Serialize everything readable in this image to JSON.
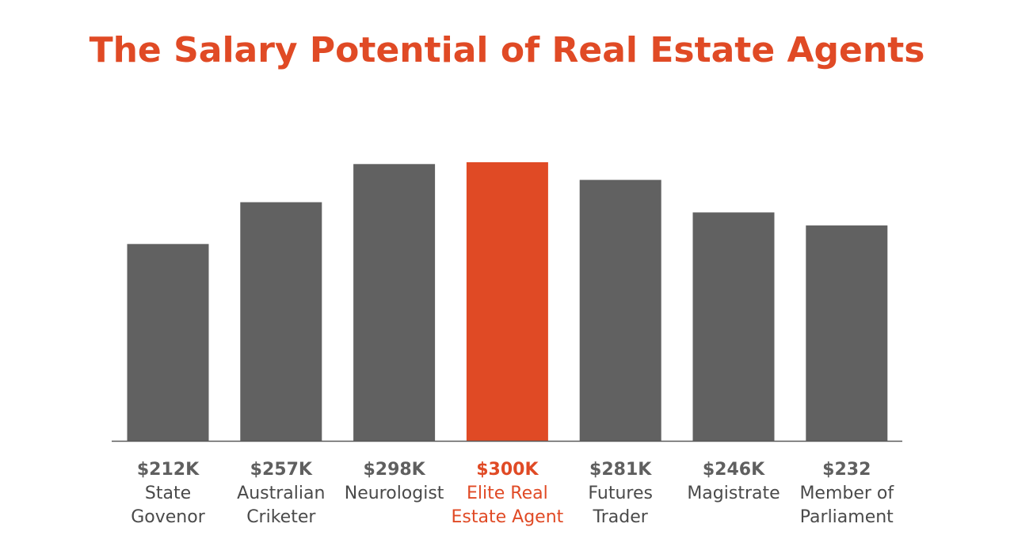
{
  "title": "The Salary Potential of Real Estate Agents",
  "colors": {
    "accent": "#e04a25",
    "bar": "#616161",
    "value_text": "#5f5f5f",
    "label_text": "#4a4a4a",
    "axis": "#5a5a5a"
  },
  "chart_data": {
    "type": "bar",
    "title": "The Salary Potential of Real Estate Agents",
    "xlabel": "",
    "ylabel": "",
    "grid": false,
    "ylim": [
      0,
      300
    ],
    "highlight_index": 3,
    "categories": [
      [
        "State",
        "Govenor"
      ],
      [
        "Australian",
        "Criketer"
      ],
      [
        "Neurologist"
      ],
      [
        "Elite Real",
        "Estate Agent"
      ],
      [
        "Futures",
        "Trader"
      ],
      [
        "Magistrate"
      ],
      [
        "Member of",
        "Parliament"
      ]
    ],
    "values": [
      212,
      257,
      298,
      300,
      281,
      246,
      232
    ],
    "value_labels": [
      "$212K",
      "$257K",
      "$298K",
      "$300K",
      "$281K",
      "$246K",
      "$232"
    ]
  }
}
